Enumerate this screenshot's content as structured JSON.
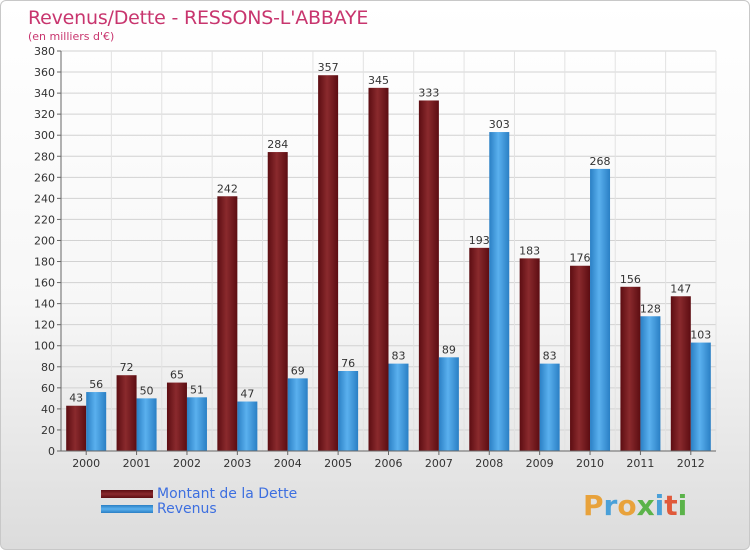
{
  "header": {
    "title": "Revenus/Dette - RESSONS-L'ABBAYE",
    "subtitle": "(en milliers d'€)"
  },
  "logo": {
    "letters": [
      "P",
      "r",
      "o",
      "x",
      "i",
      "t",
      "i"
    ]
  },
  "colors": {
    "title": "#c8356e",
    "dette": "#7a1a1d",
    "revenus": "#3d9be0",
    "legend_text": "#3d6fe0"
  },
  "chart_data": {
    "type": "bar",
    "categories": [
      "2000",
      "2001",
      "2002",
      "2003",
      "2004",
      "2005",
      "2006",
      "2007",
      "2008",
      "2009",
      "2010",
      "2011",
      "2012"
    ],
    "series": [
      {
        "name": "Montant de la Dette",
        "values": [
          43,
          72,
          65,
          242,
          284,
          357,
          345,
          333,
          193,
          183,
          176,
          156,
          147
        ]
      },
      {
        "name": "Revenus",
        "values": [
          56,
          50,
          51,
          47,
          69,
          76,
          83,
          89,
          303,
          83,
          268,
          128,
          103
        ]
      }
    ],
    "ylim": [
      0,
      380
    ],
    "yticks": [
      0,
      20,
      40,
      60,
      80,
      100,
      120,
      140,
      160,
      180,
      200,
      220,
      240,
      260,
      280,
      300,
      320,
      340,
      360,
      380
    ],
    "grid": true,
    "legend_position": "bottom-left"
  }
}
